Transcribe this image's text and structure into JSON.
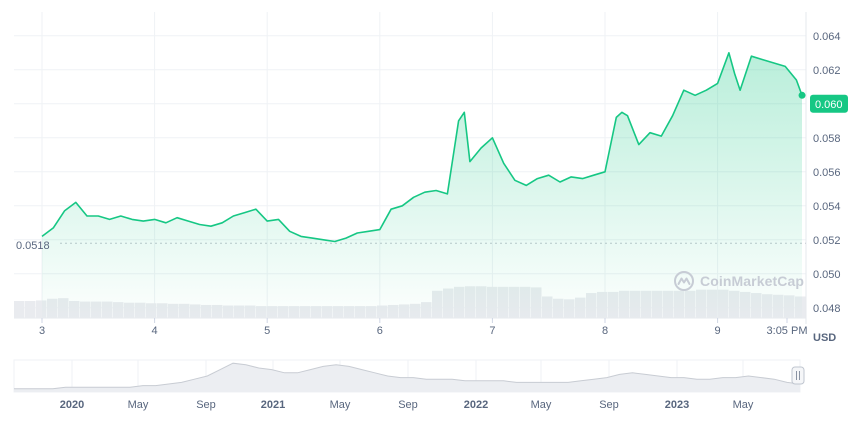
{
  "watermark": "CoinMarketCap",
  "colors": {
    "line": "#16c784",
    "fill": "#16c784",
    "grid": "#eff2f5",
    "axis_text": "#58667e",
    "volume": "#e9ebef",
    "badge": "#16c784"
  },
  "chart_data": [
    {
      "type": "line",
      "title": "",
      "currency_label": "USD",
      "current_price_label": "0.060",
      "start_price_label": "0.0518",
      "start_price": 0.0518,
      "ylim": [
        0.0474,
        0.0654
      ],
      "y_ticks": [
        0.048,
        0.05,
        0.052,
        0.054,
        0.056,
        0.058,
        0.06,
        0.062,
        0.064
      ],
      "y_tick_labels": [
        "0.048",
        "0.050",
        "0.052",
        "0.054",
        "0.056",
        "0.058",
        "0.062",
        "0.064"
      ],
      "x_tick_labels": [
        "3",
        "4",
        "5",
        "6",
        "7",
        "8",
        "9",
        "3:05 PM"
      ],
      "x": [
        3.0,
        3.1,
        3.2,
        3.3,
        3.4,
        3.5,
        3.6,
        3.7,
        3.8,
        3.9,
        4.0,
        4.1,
        4.2,
        4.3,
        4.4,
        4.5,
        4.6,
        4.7,
        4.8,
        4.9,
        5.0,
        5.1,
        5.2,
        5.3,
        5.4,
        5.5,
        5.6,
        5.7,
        5.8,
        5.9,
        6.0,
        6.1,
        6.2,
        6.3,
        6.4,
        6.5,
        6.6,
        6.7,
        6.75,
        6.8,
        6.9,
        7.0,
        7.1,
        7.2,
        7.3,
        7.4,
        7.5,
        7.6,
        7.7,
        7.8,
        7.9,
        8.0,
        8.1,
        8.15,
        8.2,
        8.3,
        8.4,
        8.5,
        8.6,
        8.7,
        8.8,
        8.9,
        9.0,
        9.1,
        9.15,
        9.2,
        9.3,
        9.4,
        9.5,
        9.6,
        9.7,
        9.75
      ],
      "values": [
        0.0522,
        0.0527,
        0.0537,
        0.0542,
        0.0534,
        0.0534,
        0.0532,
        0.0534,
        0.0532,
        0.0531,
        0.0532,
        0.053,
        0.0533,
        0.0531,
        0.0529,
        0.0528,
        0.053,
        0.0534,
        0.0536,
        0.0538,
        0.0531,
        0.0532,
        0.0525,
        0.0522,
        0.0521,
        0.052,
        0.0519,
        0.0521,
        0.0524,
        0.0525,
        0.0526,
        0.0538,
        0.054,
        0.0545,
        0.0548,
        0.0549,
        0.0547,
        0.059,
        0.0595,
        0.0566,
        0.0574,
        0.058,
        0.0565,
        0.0555,
        0.0552,
        0.0556,
        0.0558,
        0.0554,
        0.0557,
        0.0556,
        0.0558,
        0.056,
        0.0592,
        0.0595,
        0.0593,
        0.0576,
        0.0583,
        0.0581,
        0.0593,
        0.0608,
        0.0605,
        0.0608,
        0.0612,
        0.063,
        0.0618,
        0.0608,
        0.0628,
        0.0626,
        0.0624,
        0.0622,
        0.0614,
        0.0605
      ],
      "volume_values": [
        30,
        30,
        31,
        34,
        35,
        30,
        29,
        29,
        29,
        28,
        27,
        27,
        26,
        26,
        25,
        25,
        24,
        23,
        23,
        22,
        22,
        22,
        21,
        21,
        21,
        21,
        21,
        21,
        21,
        21,
        21,
        21,
        21,
        22,
        23,
        24,
        25,
        28,
        48,
        52,
        55,
        56,
        56,
        55,
        55,
        55,
        55,
        54,
        38,
        34,
        33,
        36,
        44,
        46,
        46,
        48,
        48,
        48,
        48,
        48,
        48,
        48,
        50,
        50,
        50,
        48,
        46,
        44,
        42,
        41,
        40,
        38
      ],
      "legend": "none"
    },
    {
      "type": "area",
      "title": "",
      "x_tick_labels": [
        "2020",
        "May",
        "Sep",
        "2021",
        "May",
        "Sep",
        "2022",
        "May",
        "Sep",
        "2023",
        "May"
      ],
      "values": [
        2,
        2,
        2,
        2,
        3,
        3,
        3,
        3,
        3,
        3,
        4,
        4,
        5,
        6,
        8,
        10,
        14,
        18,
        17,
        15,
        14,
        12,
        12,
        14,
        16,
        17,
        16,
        14,
        12,
        10,
        9,
        9,
        8,
        8,
        8,
        7,
        7,
        7,
        7,
        6,
        6,
        6,
        6,
        6,
        7,
        8,
        9,
        11,
        12,
        11,
        10,
        9,
        9,
        8,
        8,
        9,
        9,
        10,
        9,
        8,
        6,
        5
      ]
    }
  ]
}
